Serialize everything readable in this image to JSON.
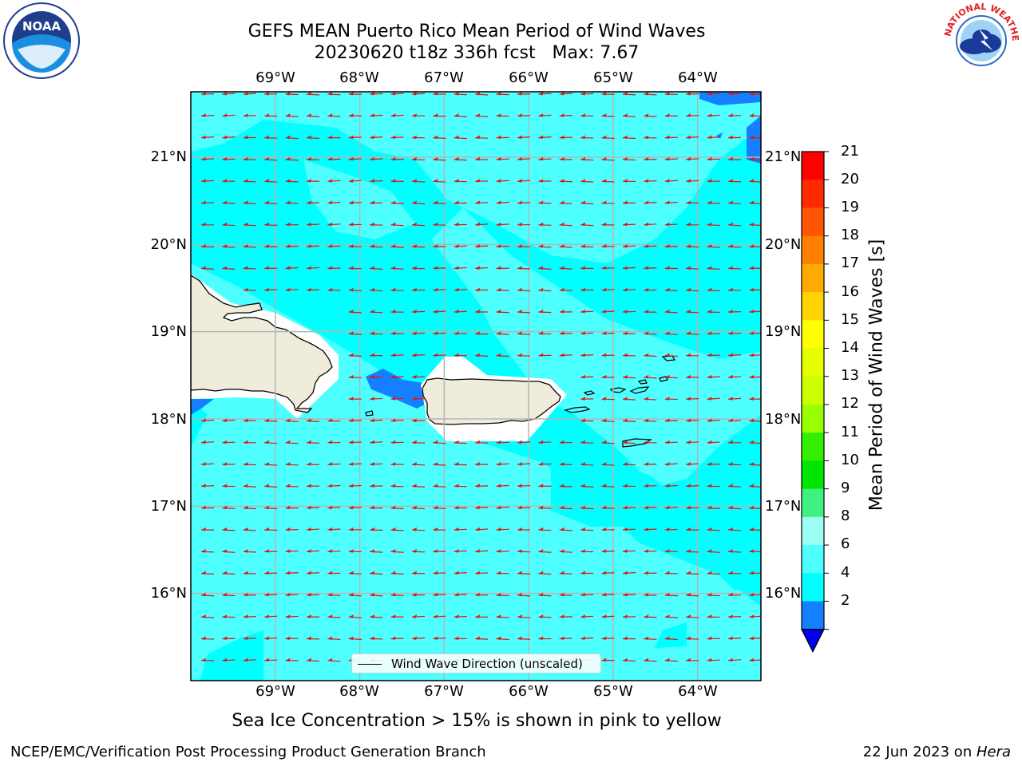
{
  "title": {
    "line1": "GEFS MEAN Puerto Rico Mean Period of Wind Waves",
    "line2": "20230620 t18z 336h fcst   Max: 7.67"
  },
  "map": {
    "lon_labels": [
      "69°W",
      "68°W",
      "67°W",
      "66°W",
      "65°W",
      "64°W"
    ],
    "lat_labels": [
      "21°N",
      "20°N",
      "19°N",
      "18°N",
      "17°N",
      "16°N"
    ],
    "lon_range": [
      -70.0,
      -63.25
    ],
    "lat_range": [
      15.0,
      21.75
    ],
    "gridlines": true,
    "ocean_colors": {
      "c4": "#00ffff",
      "c6": "#4dffff",
      "c2": "#1480ff",
      "land": "#efecdc",
      "mask": "#ffffff"
    },
    "arrow_color": "#e8120f",
    "wind_wave_direction": "west (from east)"
  },
  "legend": {
    "label": "Wind Wave Direction (unscaled)"
  },
  "colorbar": {
    "label": "Mean Period of Wind Waves [s]",
    "ticks": [
      "21",
      "20",
      "19",
      "18",
      "17",
      "16",
      "15",
      "14",
      "13",
      "12",
      "11",
      "10",
      "9",
      "8",
      "6",
      "4",
      "2"
    ],
    "colors": [
      "#ff0000",
      "#ff2a00",
      "#ff5500",
      "#ff8000",
      "#ffaa00",
      "#ffd400",
      "#ffff00",
      "#e6ff00",
      "#ccff00",
      "#99ff00",
      "#33ee00",
      "#00e600",
      "#40f080",
      "#9cfff4",
      "#4dffff",
      "#00ffff",
      "#1480ff"
    ],
    "extend_color": "#0000ee"
  },
  "sea_ice_note": "Sea Ice Concentration > 15% is shown in pink to yellow",
  "footer": {
    "left": "NCEP/EMC/Verification Post Processing Product Generation Branch",
    "date": "22 Jun 2023 on ",
    "host": "Hera"
  },
  "logos": {
    "noaa": {
      "text": "NOAA",
      "icon": "noaa-logo-icon"
    },
    "nws": {
      "text": "NATIONAL WEATHER SERVICE",
      "icon": "nws-logo-icon"
    }
  }
}
